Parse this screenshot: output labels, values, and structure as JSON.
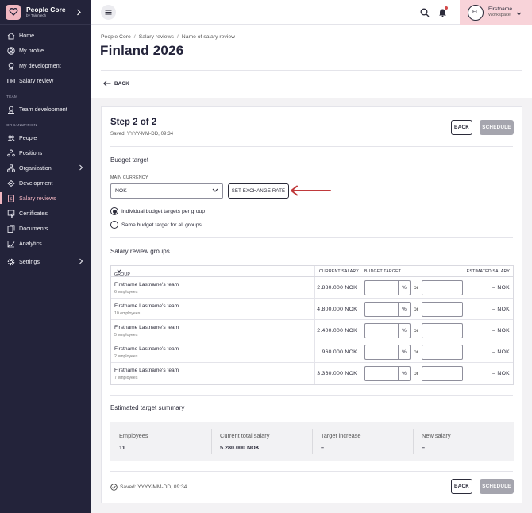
{
  "brand": {
    "name": "People Core",
    "sub": "by Talentech"
  },
  "nav": {
    "items_main": [
      {
        "label": "Home",
        "icon": "home-icon"
      },
      {
        "label": "My profile",
        "icon": "profile-icon"
      },
      {
        "label": "My development",
        "icon": "development-icon"
      },
      {
        "label": "Salary review",
        "icon": "salary-icon"
      }
    ],
    "team_label": "TEAM",
    "items_team": [
      {
        "label": "Team development",
        "icon": "team-development-icon"
      }
    ],
    "org_label": "ORGANIZATION",
    "items_org": [
      {
        "label": "People",
        "icon": "people-icon"
      },
      {
        "label": "Positions",
        "icon": "positions-icon"
      },
      {
        "label": "Organization",
        "icon": "organization-icon"
      },
      {
        "label": "Development",
        "icon": "development-icon"
      },
      {
        "label": "Salary reviews",
        "icon": "salary-reviews-icon"
      },
      {
        "label": "Certificates",
        "icon": "certificate-icon"
      },
      {
        "label": "Documents",
        "icon": "documents-icon"
      },
      {
        "label": "Analytics",
        "icon": "analytics-icon"
      }
    ],
    "settings_label": "Settings"
  },
  "user": {
    "initials": "FL",
    "name": "Firstname",
    "workspace": "Workspace"
  },
  "breadcrumb": [
    "People Core",
    "Salary reviews",
    "Name of salary review"
  ],
  "page_title": "Finland 2026",
  "back_label": "BACK",
  "step": {
    "title": "Step 2 of 2",
    "saved": "Saved: YYYY-MM-DD, 09:34"
  },
  "buttons": {
    "back": "BACK",
    "schedule": "SCHEDULE"
  },
  "budget": {
    "title": "Budget target",
    "currency_label": "MAIN CURRENCY",
    "currency_value": "NOK",
    "rate_button": "SET EXCHANGE RATE",
    "radio_individual": "Individual budget targets per group",
    "radio_same": "Same budget target for all groups"
  },
  "groups": {
    "title": "Salary review groups",
    "headers": {
      "group": "GROUP",
      "current": "CURRENT SALARY",
      "budget": "BUDGET TARGET",
      "estimated": "ESTIMATED SALARY"
    },
    "pct_suffix": "%",
    "or": "or",
    "rows": [
      {
        "name": "Firstname Lastname's team",
        "employees": "6 employees",
        "current": "2.880.000 NOK",
        "estimated": "– NOK"
      },
      {
        "name": "Firstname Lastname's team",
        "employees": "10 employees",
        "current": "4.800.000 NOK",
        "estimated": "– NOK"
      },
      {
        "name": "Firstname Lastname's team",
        "employees": "5 employees",
        "current": "2.400.000 NOK",
        "estimated": "– NOK"
      },
      {
        "name": "Firstname Lastname's team",
        "employees": "2 employees",
        "current": "960.000 NOK",
        "estimated": "– NOK"
      },
      {
        "name": "Firstname Lastname's team",
        "employees": "7 employees",
        "current": "3.360.000 NOK",
        "estimated": "– NOK"
      }
    ]
  },
  "summary": {
    "title": "Estimated target summary",
    "employees_label": "Employees",
    "employees_value": "11",
    "total_label": "Current total salary",
    "total_value": "5.280.000 NOK",
    "increase_label": "Target increase",
    "increase_value": "–",
    "new_label": "New salary",
    "new_value": "–"
  },
  "footer": {
    "saved": "Saved: YYYY-MM-DD, 09:34"
  },
  "colors": {
    "sidebar": "#23233a",
    "accent": "#f0b6c0",
    "annotation": "#c0393b"
  }
}
